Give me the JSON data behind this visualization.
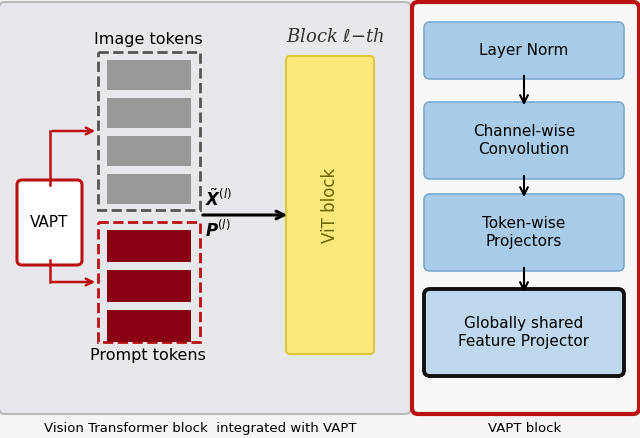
{
  "fig_bg": "#f5f5f5",
  "left_panel_bg": "#e8e8ec",
  "left_panel_edge": "#bbbbbb",
  "right_panel_bg": "#f8f8f8",
  "right_panel_edge": "#bb1111",
  "vit_block_color": "#fce97a",
  "vit_block_edge": "#ddc840",
  "gray_token_color": "#999999",
  "red_token_color": "#880011",
  "vapt_box_color": "#ffffff",
  "vapt_border_color": "#bb1111",
  "flow_box_color": "#a8cce8",
  "flow_box_edge": "#7aaad0",
  "last_box_color": "#c0d8ee",
  "last_box_edge": "#111111",
  "arrow_color": "#222222",
  "red_arrow_color": "#bb1111",
  "title_left": "Vision Transformer block  integrated with VAPT",
  "title_right": "VAPT block",
  "block_label": "Block $\\ell$$-$th",
  "image_tokens_label": "Image tokens",
  "prompt_tokens_label": "Prompt tokens",
  "vapt_label": "VAPT",
  "vit_label": "ViT block",
  "flow_labels": [
    "Layer Norm",
    "Channel-wise\nConvolution",
    "Token-wise\nProjectors",
    "Globally shared\nFeature Projector"
  ],
  "x_tilde_label": "$\\tilde{\\boldsymbol{X}}^{(l)}$",
  "p_label": "$\\boldsymbol{P}^{(l)}$"
}
